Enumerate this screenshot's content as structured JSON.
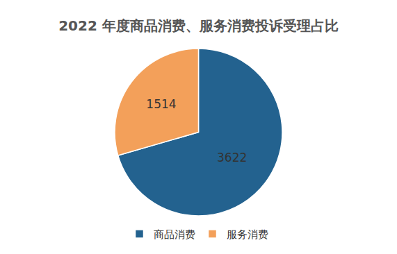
{
  "chart_data": {
    "type": "pie",
    "title": "2022 年度商品消费、服务消费投诉受理占比",
    "categories": [
      "商品消费",
      "服务消费"
    ],
    "values": [
      3622,
      1514
    ],
    "colors": [
      "#23628f",
      "#f3a05a"
    ],
    "data_labels": true,
    "legend": "bottom"
  }
}
